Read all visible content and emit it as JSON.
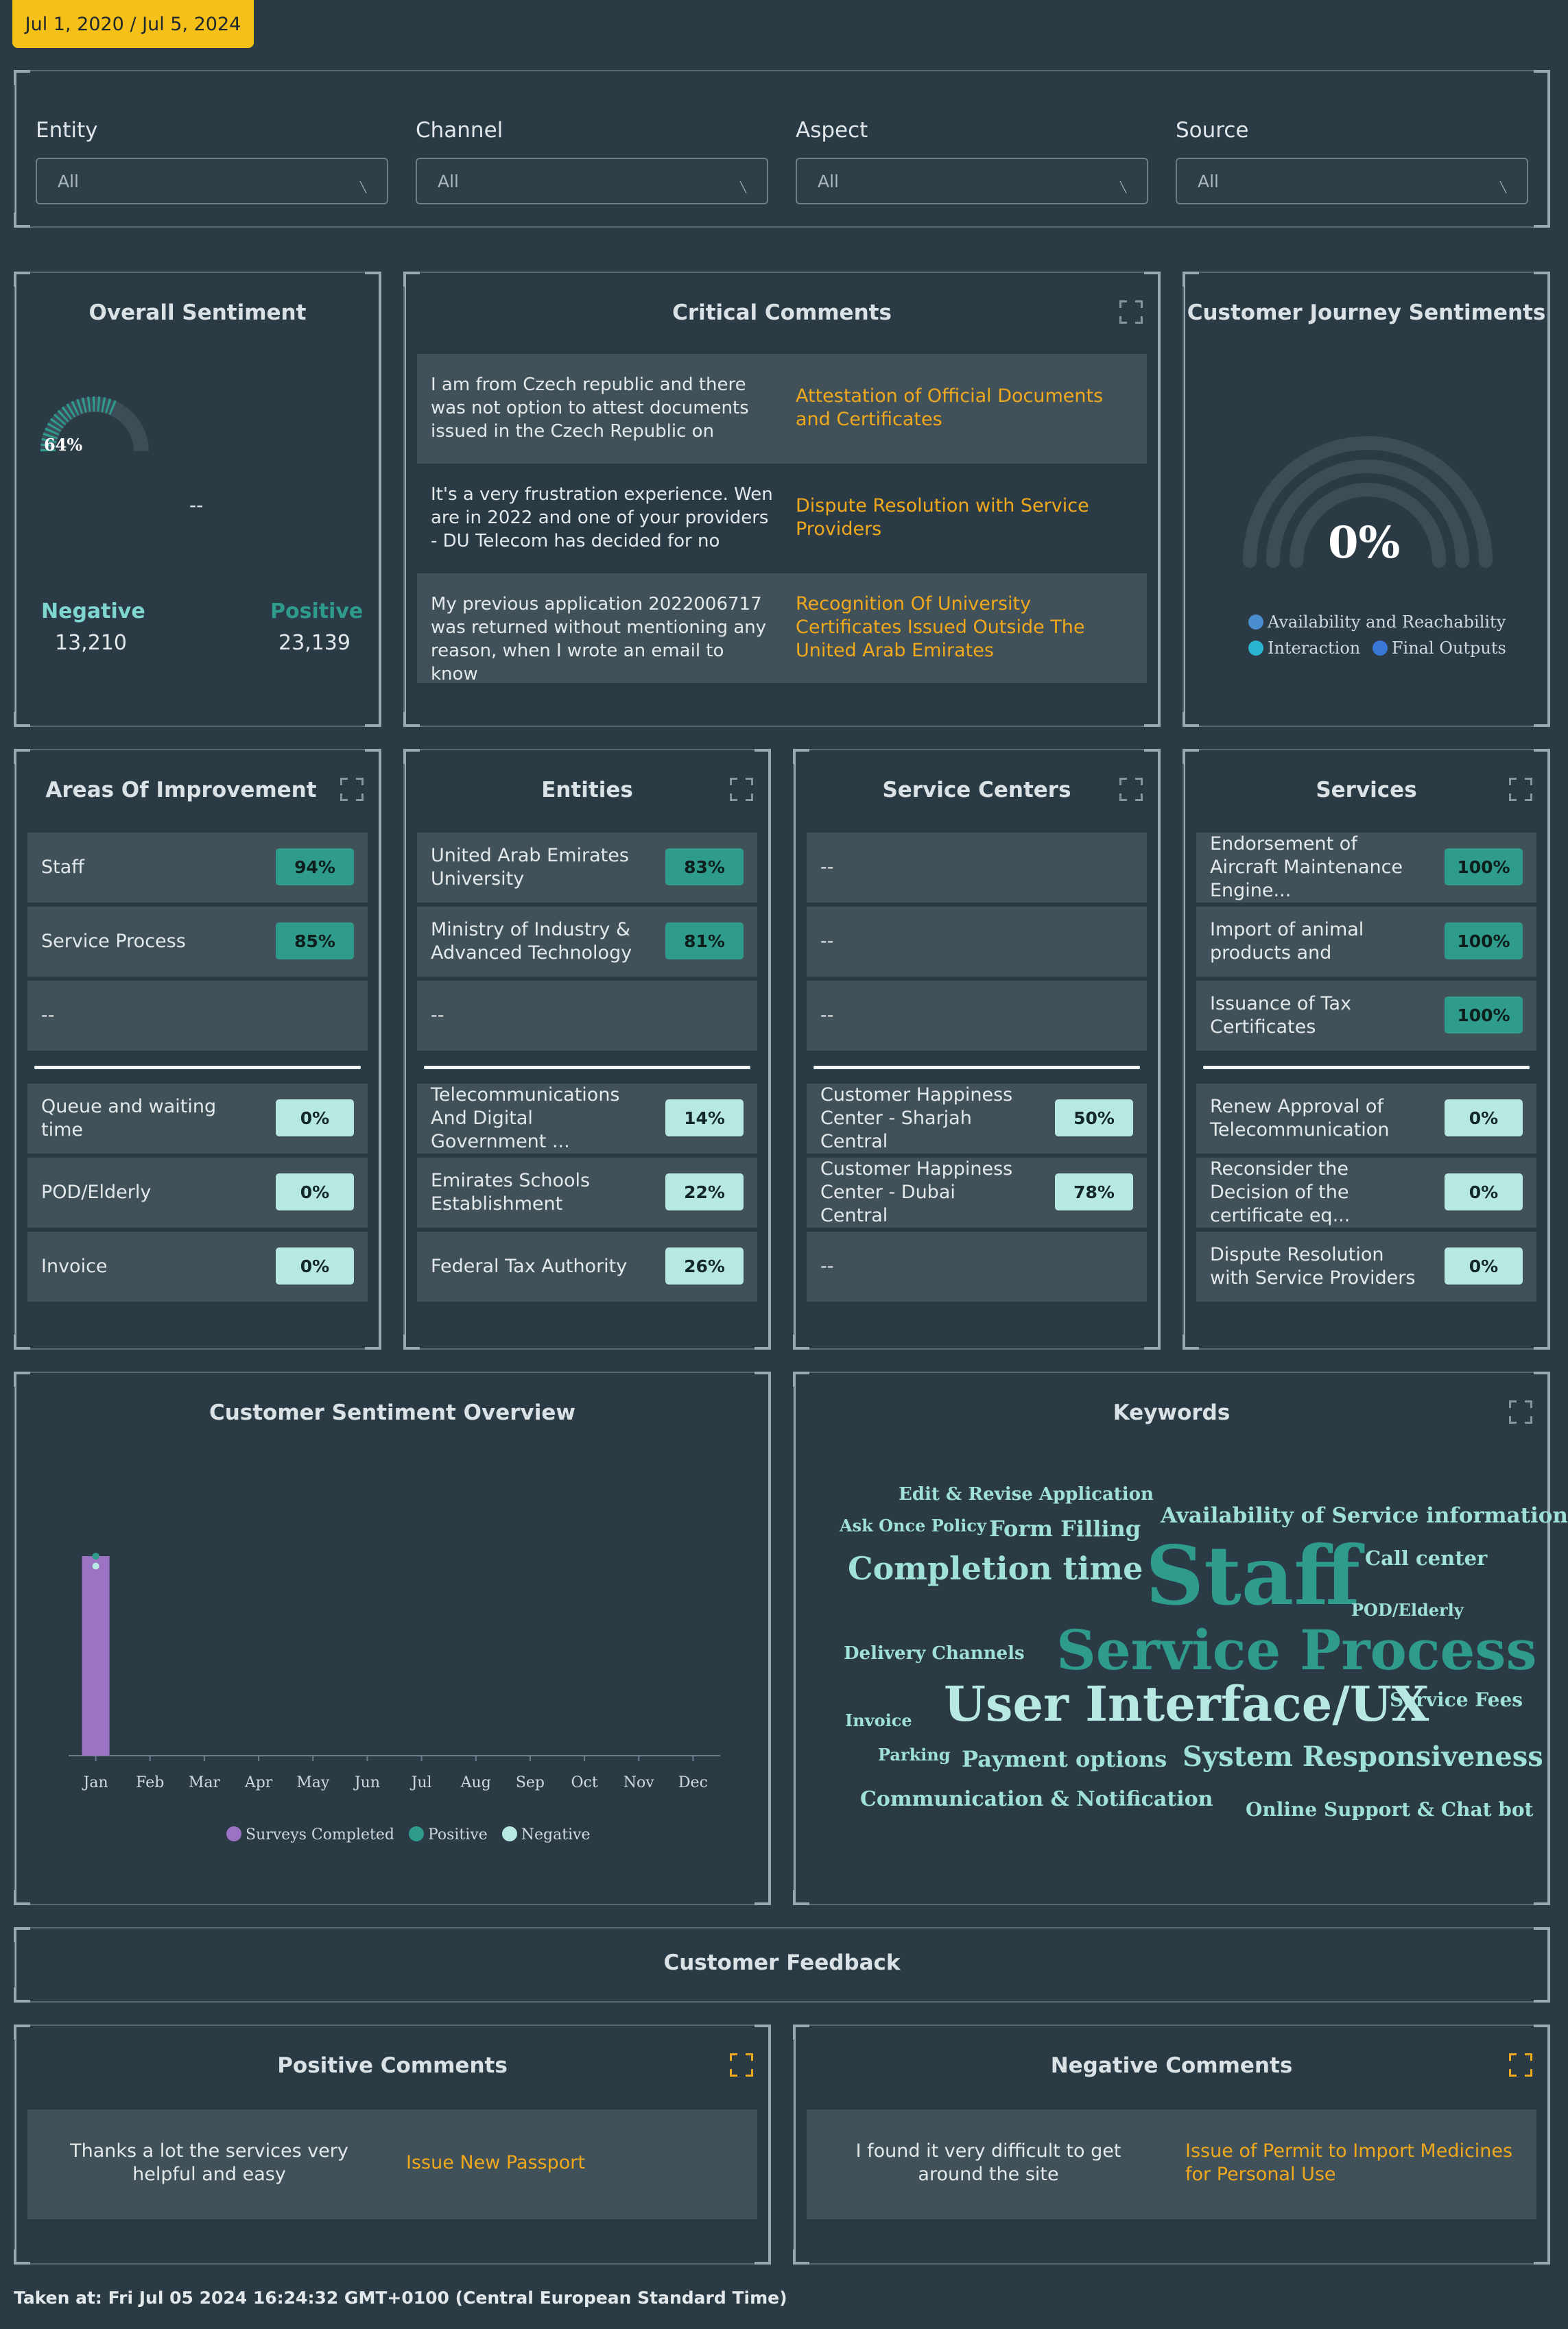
{
  "date_range": "Jul 1, 2020 / Jul 5, 2024",
  "filters": [
    {
      "label": "Entity",
      "value": "All"
    },
    {
      "label": "Channel",
      "value": "All"
    },
    {
      "label": "Aspect",
      "value": "All"
    },
    {
      "label": "Source",
      "value": "All"
    }
  ],
  "overall_sentiment": {
    "title": "Overall Sentiment",
    "gauge_label": "64%",
    "placeholder": "--",
    "negative_label": "Negative",
    "negative_value": "13,210",
    "positive_label": "Positive",
    "positive_value": "23,139"
  },
  "critical_comments": {
    "title": "Critical Comments",
    "rows": [
      {
        "text": "I am from Czech republic and there was not option to attest documents issued in the Czech Republic on",
        "link": "Attestation of Official Documents and Certificates"
      },
      {
        "text": "It's a very frustration experience. Wen are in 2022 and one of your providers - DU Telecom has decided for no",
        "link": "Dispute Resolution with Service Providers"
      },
      {
        "text": "My previous application 2022006717 was returned without mentioning any reason, when I wrote an email to know",
        "link": "Recognition Of University Certificates Issued Outside The United Arab Emirates"
      }
    ]
  },
  "journey": {
    "title": "Customer Journey Sentiments",
    "value": "0%",
    "legend": [
      {
        "label": "Availability and Reachability",
        "color": "#4b8ed0"
      },
      {
        "label": "Interaction",
        "color": "#2ab4d0"
      },
      {
        "label": "Final Outputs",
        "color": "#3a78d8"
      }
    ]
  },
  "areas": {
    "title": "Areas Of Improvement",
    "top": [
      {
        "label": "Staff",
        "pct": "94%"
      },
      {
        "label": "Service Process",
        "pct": "85%"
      },
      {
        "label": "--",
        "pct": ""
      }
    ],
    "bottom": [
      {
        "label": "Queue and waiting time",
        "pct": "0%"
      },
      {
        "label": "POD/Elderly",
        "pct": "0%"
      },
      {
        "label": "Invoice",
        "pct": "0%"
      }
    ]
  },
  "entities": {
    "title": "Entities",
    "top": [
      {
        "label": "United Arab Emirates University",
        "pct": "83%"
      },
      {
        "label": "Ministry of Industry & Advanced Technology",
        "pct": "81%"
      },
      {
        "label": "--",
        "pct": ""
      }
    ],
    "bottom": [
      {
        "label": "Telecommunications And Digital Government ...",
        "pct": "14%"
      },
      {
        "label": "Emirates Schools Establishment",
        "pct": "22%"
      },
      {
        "label": "Federal Tax Authority",
        "pct": "26%"
      }
    ]
  },
  "service_centers": {
    "title": "Service Centers",
    "top": [
      {
        "label": "--",
        "pct": ""
      },
      {
        "label": "--",
        "pct": ""
      },
      {
        "label": "--",
        "pct": ""
      }
    ],
    "bottom": [
      {
        "label": "Customer Happiness Center - Sharjah Central",
        "pct": "50%"
      },
      {
        "label": "Customer Happiness Center - Dubai Central",
        "pct": "78%"
      },
      {
        "label": "--",
        "pct": ""
      }
    ]
  },
  "services": {
    "title": "Services",
    "top": [
      {
        "label": "Endorsement of Aircraft Maintenance Engine...",
        "pct": "100%"
      },
      {
        "label": "Import of animal products and",
        "pct": "100%"
      },
      {
        "label": "Issuance of Tax Certificates",
        "pct": "100%"
      }
    ],
    "bottom": [
      {
        "label": "Renew Approval of Telecommunication",
        "pct": "0%"
      },
      {
        "label": "Reconsider the Decision of the certificate eq...",
        "pct": "0%"
      },
      {
        "label": "Dispute Resolution with Service Providers",
        "pct": "0%"
      }
    ]
  },
  "overview": {
    "title": "Customer Sentiment Overview"
  },
  "chart_data": {
    "type": "bar",
    "categories": [
      "Jan",
      "Feb",
      "Mar",
      "Apr",
      "May",
      "Jun",
      "Jul",
      "Aug",
      "Sep",
      "Oct",
      "Nov",
      "Dec"
    ],
    "series": [
      {
        "name": "Surveys Completed",
        "type": "bar",
        "color": "#9b72c4",
        "values": [
          100,
          0,
          0,
          0,
          0,
          0,
          0,
          0,
          0,
          0,
          0,
          0
        ]
      },
      {
        "name": "Positive",
        "type": "line",
        "color": "#2e9b8b",
        "values": [
          100,
          0,
          0,
          0,
          0,
          0,
          0,
          0,
          0,
          0,
          0,
          0
        ]
      },
      {
        "name": "Negative",
        "type": "line",
        "color": "#b7e9e2",
        "values": [
          95,
          0,
          0,
          0,
          0,
          0,
          0,
          0,
          0,
          0,
          0,
          0
        ]
      }
    ],
    "ylim": [
      0,
      110
    ],
    "legend_position": "bottom"
  },
  "keywords": {
    "title": "Keywords",
    "words": [
      {
        "text": "Edit & Revise Application",
        "color": "#9fe0d8"
      },
      {
        "text": "Ask Once Policy",
        "color": "#9fe0d8"
      },
      {
        "text": "Form Filling",
        "color": "#9fe0d8"
      },
      {
        "text": "Availability of Service information",
        "color": "#9fe0d8"
      },
      {
        "text": "Completion time",
        "color": "#9fe0d8"
      },
      {
        "text": "Staff",
        "color": "#2e9b8b"
      },
      {
        "text": "Call center",
        "color": "#9fe0d8"
      },
      {
        "text": "POD/Elderly",
        "color": "#9fe0d8"
      },
      {
        "text": "Delivery Channels",
        "color": "#9fe0d8"
      },
      {
        "text": "Service Process",
        "color": "#2e9b8b"
      },
      {
        "text": "Service Fees",
        "color": "#9fe0d8"
      },
      {
        "text": "Invoice",
        "color": "#9fe0d8"
      },
      {
        "text": "User Interface/UX",
        "color": "#b7e9e2"
      },
      {
        "text": "Parking",
        "color": "#9fe0d8"
      },
      {
        "text": "Payment options",
        "color": "#9fe0d8"
      },
      {
        "text": "System Responsiveness",
        "color": "#9fe0d8"
      },
      {
        "text": "Communication & Notification",
        "color": "#9fe0d8"
      },
      {
        "text": "Online Support & Chat bot",
        "color": "#9fe0d8"
      }
    ]
  },
  "feedback": {
    "title": "Customer Feedback",
    "positive_title": "Positive Comments",
    "positive_text": "Thanks a lot the services very helpful and easy",
    "positive_link": "Issue New Passport",
    "negative_title": "Negative Comments",
    "negative_text": "I found it very difficult to get around the site",
    "negative_link": "Issue of Permit to Import Medicines for Personal Use"
  },
  "footer": "Taken at: Fri Jul 05 2024 16:24:32 GMT+0100 (Central European Standard Time)"
}
